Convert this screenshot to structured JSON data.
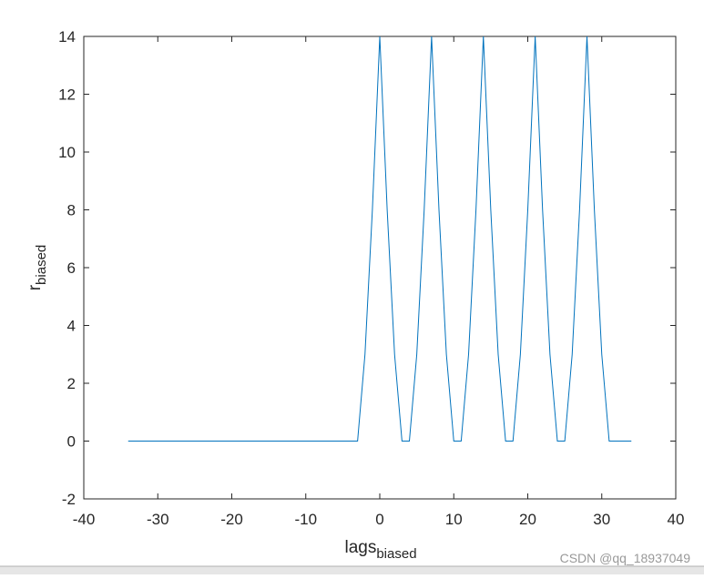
{
  "chart_data": {
    "type": "line",
    "xlabel": {
      "text": "lags",
      "subscript": "biased"
    },
    "ylabel": {
      "text": "r",
      "subscript": "biased"
    },
    "watermark": "CSDN @qq_18937049",
    "x": [
      -34,
      -33,
      -32,
      -31,
      -30,
      -29,
      -28,
      -27,
      -26,
      -25,
      -24,
      -23,
      -22,
      -21,
      -20,
      -19,
      -18,
      -17,
      -16,
      -15,
      -14,
      -13,
      -12,
      -11,
      -10,
      -9,
      -8,
      -7,
      -6,
      -5,
      -4,
      -3,
      -2,
      -1,
      0,
      1,
      2,
      3,
      4,
      5,
      6,
      7,
      8,
      9,
      10,
      11,
      12,
      13,
      14,
      15,
      16,
      17,
      18,
      19,
      20,
      21,
      22,
      23,
      24,
      25,
      26,
      27,
      28,
      29,
      30,
      31,
      32,
      33,
      34
    ],
    "values": [
      0,
      0,
      0,
      0,
      0,
      0,
      0,
      0,
      0,
      0,
      0,
      0,
      0,
      0,
      0,
      0,
      0,
      0,
      0,
      0,
      0,
      0,
      0,
      0,
      0,
      0,
      0,
      0,
      0,
      0,
      0,
      0,
      3,
      8,
      14,
      8,
      3,
      0,
      0,
      3,
      8,
      14,
      8,
      3,
      0,
      0,
      3,
      8,
      14,
      8,
      3,
      0,
      0,
      3,
      8,
      14,
      8,
      3,
      0,
      0,
      3,
      8,
      14,
      8,
      3,
      0,
      0,
      0,
      0
    ],
    "color": "#0072bd",
    "xlim": [
      -40,
      40
    ],
    "xticks": [
      -40,
      -30,
      -20,
      -10,
      0,
      10,
      20,
      30,
      40
    ],
    "ylim": [
      -2,
      14
    ],
    "yticks": [
      -2,
      0,
      2,
      4,
      6,
      8,
      10,
      12,
      14
    ]
  }
}
